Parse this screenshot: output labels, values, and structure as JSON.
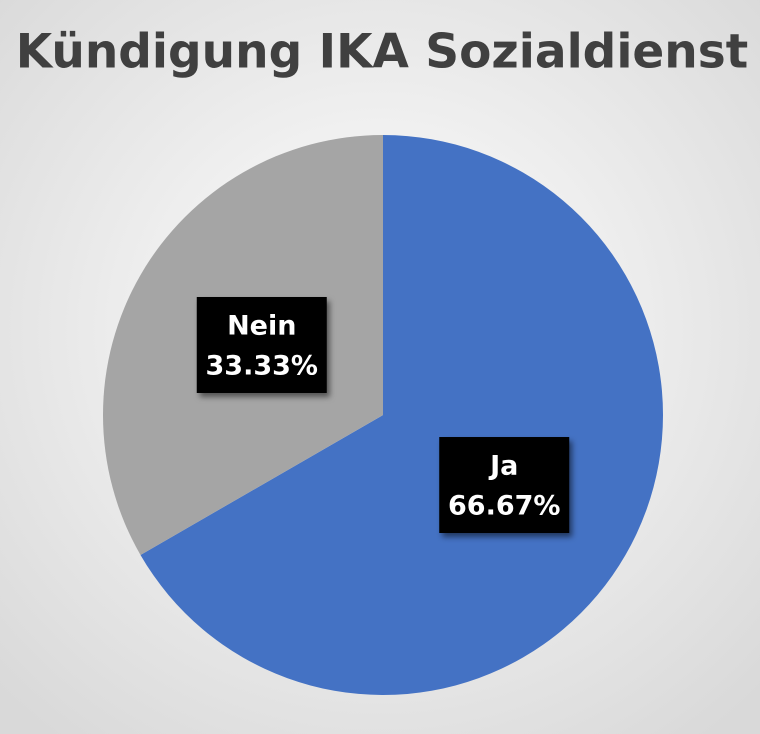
{
  "chart_data": {
    "type": "pie",
    "title": "Kündigung IKA Sozialdienst",
    "categories": [
      "Ja",
      "Nein"
    ],
    "values": [
      66.67,
      33.33
    ],
    "value_labels": [
      "66.67%",
      "33.33%"
    ],
    "colors": [
      "#4472c4",
      "#a5a5a5"
    ]
  }
}
